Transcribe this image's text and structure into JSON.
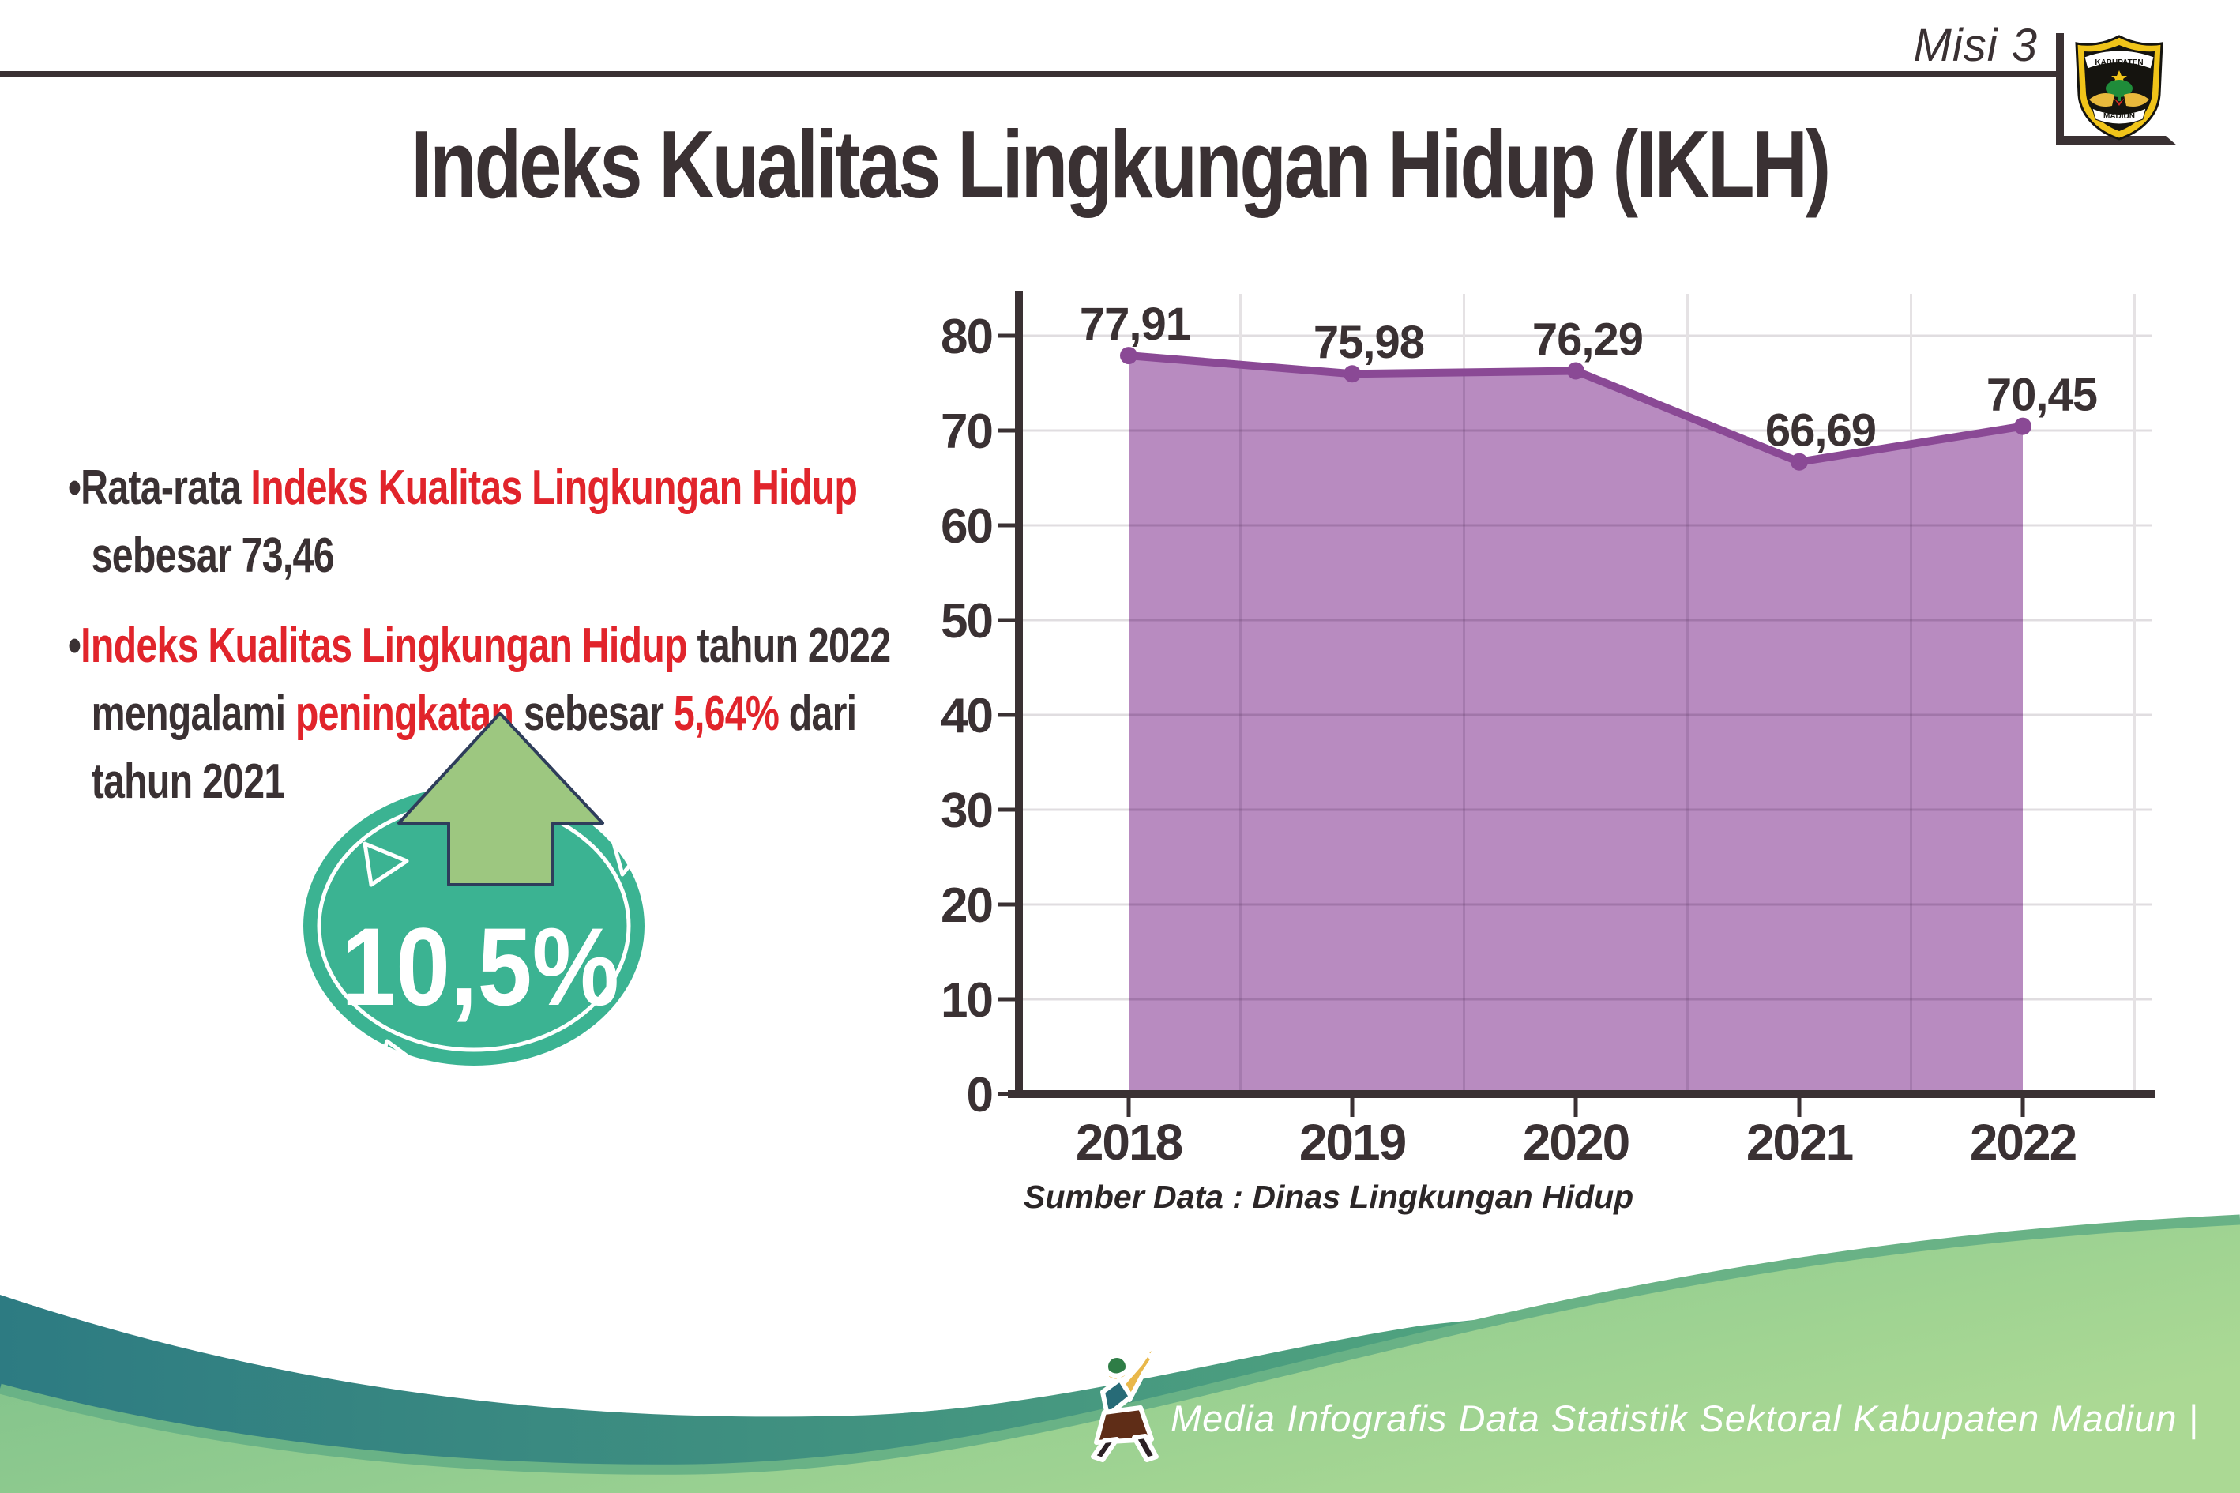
{
  "header": {
    "misi_label": "Misi 3",
    "title": "Indeks Kualitas Lingkungan Hidup (IKLH)",
    "logo": {
      "banner_top": "KABUPATEN",
      "banner_bottom": "MADIUN"
    }
  },
  "bullets": [
    {
      "lines": [
        [
          {
            "t": "•Rata-rata ",
            "c": "dark"
          },
          {
            "t": "Indeks Kualitas Lingkungan Hidup",
            "c": "red"
          }
        ],
        [
          {
            "t": "sebesar 73,46",
            "c": "dark"
          }
        ]
      ]
    },
    {
      "lines": [
        [
          {
            "t": "•",
            "c": "dark"
          },
          {
            "t": "Indeks Kualitas Lingkungan Hidup",
            "c": "red"
          },
          {
            "t": " tahun 2022",
            "c": "dark"
          }
        ],
        [
          {
            "t": "mengalami ",
            "c": "dark"
          },
          {
            "t": "peningkatan",
            "c": "red"
          },
          {
            "t": " sebesar ",
            "c": "dark"
          },
          {
            "t": "5,64%",
            "c": "red"
          },
          {
            "t": " dari",
            "c": "dark"
          }
        ],
        [
          {
            "t": "tahun 2021",
            "c": "dark"
          }
        ]
      ]
    }
  ],
  "badge": {
    "value": "10,5%",
    "circle_color": "#3bb392",
    "arrow_color": "#9dc780"
  },
  "chart_data": {
    "type": "area",
    "title": "",
    "categories": [
      "2018",
      "2019",
      "2020",
      "2021",
      "2022"
    ],
    "values": [
      77.91,
      75.98,
      76.29,
      66.69,
      70.45
    ],
    "value_labels": [
      "77,91",
      "75,98",
      "76,29",
      "66,69",
      "70,45"
    ],
    "xlabel": "",
    "ylabel": "",
    "ylim": [
      0,
      80
    ],
    "ytick_step": 10,
    "grid": true,
    "legend": "none",
    "area_color": "#b88bc0",
    "line_color": "#8a4995",
    "source_note": "Sumber Data : Dinas Lingkungan Hidup"
  },
  "source": "Sumber Data : Dinas Lingkungan Hidup",
  "footer": {
    "credit": "Media Infografis Data Statistik Sektoral Kabupaten Madiun |"
  },
  "colors": {
    "dark_text": "#3a3133",
    "red_text": "#e1242b",
    "teal_wave": "#2d7b82",
    "green_wave": "#8fcb92",
    "badge_teal": "#3bb392",
    "arrow_green": "#9dc780",
    "area_fill": "#b88bc0",
    "line_purple": "#8a4995"
  }
}
